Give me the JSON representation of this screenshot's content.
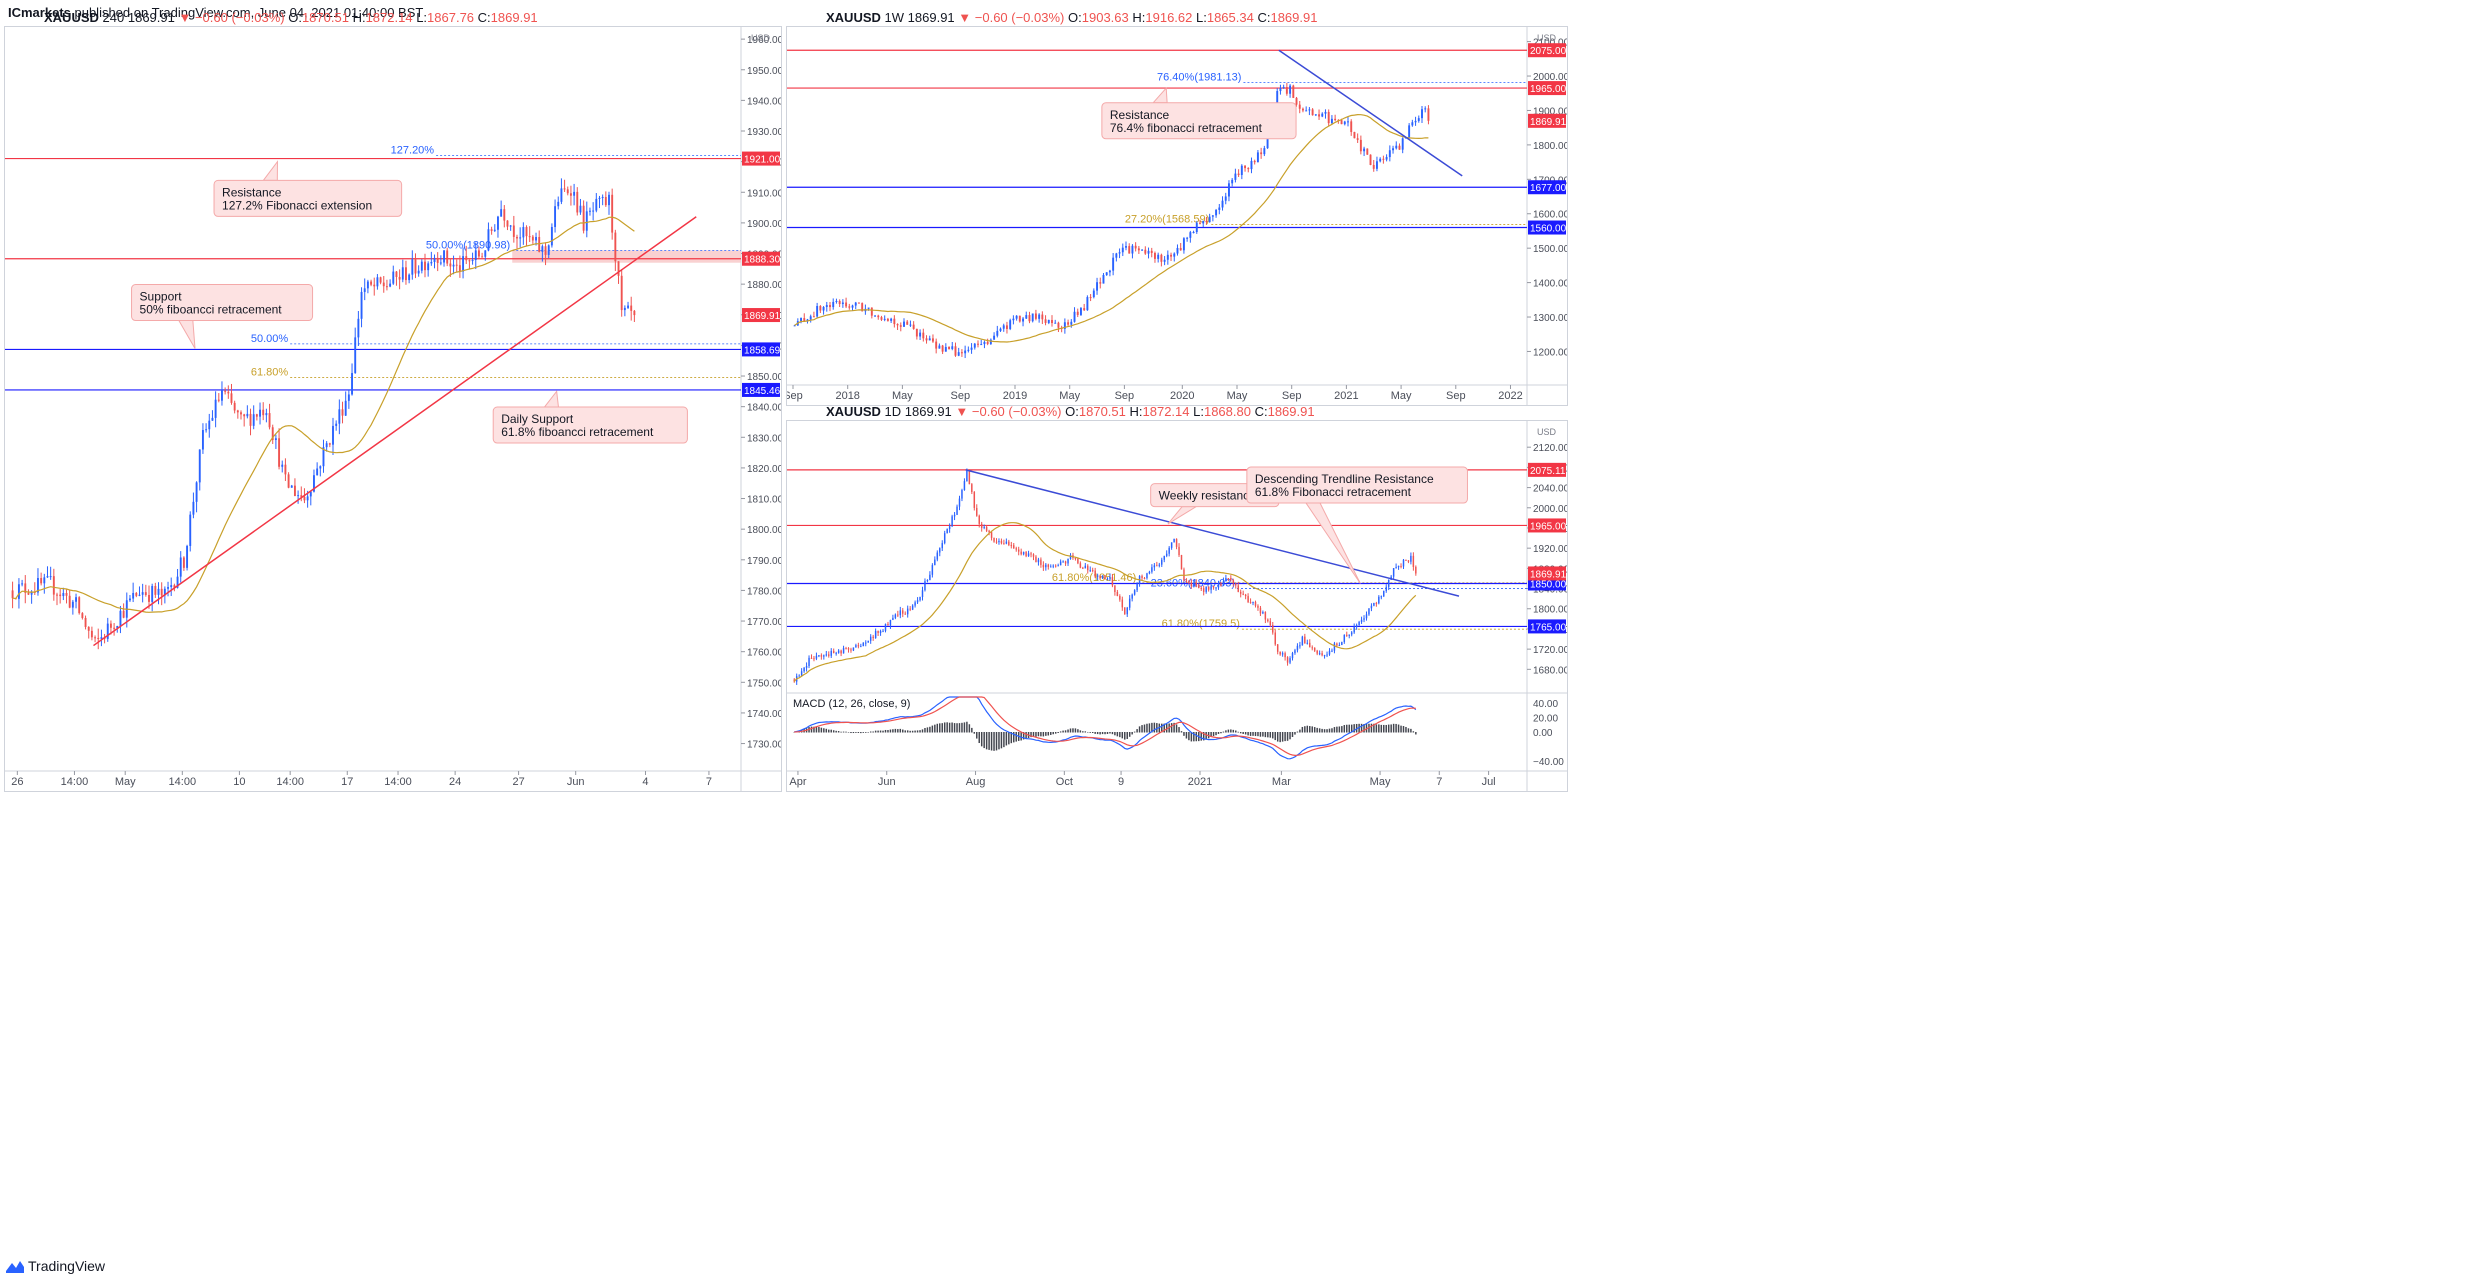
{
  "publisher": {
    "name": "ICmarkets",
    "text": " published on TradingView.com, June 04, 2021 01:40:00 BST"
  },
  "footer": {
    "brand": "TradingView"
  },
  "colors": {
    "up": "#2962ff",
    "down": "#ef5350",
    "ma": "#c8a02a",
    "resistance": "#f23645",
    "support": "#1a1aff",
    "trend_red": "#f23645",
    "trend_blue": "#3b4bd6",
    "callout_bg": "#fde2e2",
    "callout_border": "#f4a9a9"
  },
  "chart_data": [
    {
      "id": "h4",
      "type": "candlestick",
      "title_parts": {
        "symbol": "XAUUSD",
        "tf": "240",
        "last": "1869.91",
        "chg": "▼ −0.60 (−0.03%)",
        "o_label": "O:",
        "o": "1870.51",
        "h_label": "H:",
        "h": "1872.14",
        "l_label": "L:",
        "l": "1867.76",
        "c_label": "C:",
        "c": "1869.91"
      },
      "currency": "USD",
      "ylim": [
        1723,
        1962
      ],
      "y_ticks": [
        1730,
        1740,
        1750,
        1760,
        1770,
        1780,
        1790,
        1800,
        1810,
        1820,
        1830,
        1840,
        1850,
        1860,
        1870,
        1880,
        1890,
        1900,
        1910,
        1920,
        1930,
        1940,
        1950,
        1960
      ],
      "y_tick_labels": [
        "1730.00",
        "1740.00",
        "1750.00",
        "1760.00",
        "1770.00",
        "1780.00",
        "1790.00",
        "1800.00",
        "1810.00",
        "1820.00",
        "1830.00",
        "1840.00",
        "1850.00",
        "1860.00",
        "1870.00",
        "1880.00",
        "1890.00",
        "1900.00",
        "1910.00",
        "1920.00",
        "1930.00",
        "1940.00",
        "1950.00",
        "1960.00"
      ],
      "x_count": 232,
      "x_ticks": [
        {
          "i": 2,
          "label": "26"
        },
        {
          "i": 20,
          "label": "14:00"
        },
        {
          "i": 36,
          "label": "May"
        },
        {
          "i": 54,
          "label": "14:00"
        },
        {
          "i": 72,
          "label": "10"
        },
        {
          "i": 88,
          "label": "14:00"
        },
        {
          "i": 106,
          "label": "17"
        },
        {
          "i": 122,
          "label": "14:00"
        },
        {
          "i": 140,
          "label": "24"
        },
        {
          "i": 160,
          "label": "27"
        },
        {
          "i": 178,
          "label": "Jun"
        },
        {
          "i": 200,
          "label": "4"
        },
        {
          "i": 220,
          "label": "7"
        }
      ],
      "anchors": [
        [
          0,
          1780
        ],
        [
          12,
          1782
        ],
        [
          20,
          1775
        ],
        [
          26,
          1762
        ],
        [
          32,
          1770
        ],
        [
          40,
          1780
        ],
        [
          48,
          1778
        ],
        [
          54,
          1790
        ],
        [
          60,
          1830
        ],
        [
          66,
          1845
        ],
        [
          72,
          1835
        ],
        [
          80,
          1840
        ],
        [
          86,
          1815
        ],
        [
          92,
          1810
        ],
        [
          100,
          1830
        ],
        [
          106,
          1845
        ],
        [
          110,
          1878
        ],
        [
          118,
          1880
        ],
        [
          126,
          1885
        ],
        [
          134,
          1890
        ],
        [
          140,
          1885
        ],
        [
          148,
          1890
        ],
        [
          154,
          1905
        ],
        [
          158,
          1898
        ],
        [
          162,
          1895
        ],
        [
          168,
          1890
        ],
        [
          172,
          1908
        ],
        [
          176,
          1912
        ],
        [
          180,
          1900
        ],
        [
          184,
          1905
        ],
        [
          188,
          1907
        ],
        [
          190,
          1890
        ],
        [
          192,
          1870
        ],
        [
          196,
          1869.9
        ]
      ],
      "price_lines": [
        {
          "value": 1921.0,
          "label": "1921.00",
          "color": "#f23645",
          "style": "solid",
          "box": "#f23645"
        },
        {
          "value": 1888.3,
          "label": "1888.30",
          "color": "#f23645",
          "style": "solid",
          "box": "#f23645"
        },
        {
          "value": 1858.69,
          "label": "1858.69",
          "color": "#1a1aff",
          "style": "solid",
          "box": "#1a1aff"
        },
        {
          "value": 1845.46,
          "label": "1845.46",
          "color": "#1a1aff",
          "style": "solid",
          "box": "#1a1aff"
        }
      ],
      "last_price": {
        "value": 1869.91,
        "label": "1869.91"
      },
      "fib_lines": [
        {
          "value": 1922.0,
          "label": "127.20%",
          "color": "#2962ff",
          "x_from": 134
        },
        {
          "value": 1890.98,
          "label": "50.00%(1890.98)",
          "color": "#2962ff",
          "x_from": 158
        },
        {
          "value": 1860.5,
          "label": "50.00%",
          "color": "#2962ff",
          "x_from": 88
        },
        {
          "value": 1849.5,
          "label": "61.80%",
          "color": "#c8a02a",
          "x_from": 88
        }
      ],
      "trendlines": [
        {
          "from": [
            26,
            1762
          ],
          "to": [
            216,
            1902
          ],
          "color": "#f23645"
        }
      ],
      "zones": [
        {
          "from_i": 158,
          "to_i": 232,
          "y1": 1887,
          "y2": 1891,
          "color": "#f8c6c6"
        }
      ],
      "callouts": [
        {
          "text": [
            "Resistance",
            "127.2% Fibonacci extension"
          ],
          "x_i": 64,
          "y": 1908,
          "tip": [
            84,
            1920
          ]
        },
        {
          "text": [
            "Support",
            "50% fiboancci retracement"
          ],
          "x_i": 38,
          "y": 1874,
          "tip": [
            58,
            1859
          ]
        },
        {
          "text": [
            "Daily Support",
            "61.8% fiboancci retracement"
          ],
          "x_i": 152,
          "y": 1834,
          "tip": [
            172,
            1845
          ]
        }
      ]
    },
    {
      "id": "w1",
      "type": "candlestick",
      "title_parts": {
        "symbol": "XAUUSD",
        "tf": "1W",
        "last": "1869.91",
        "chg": "▼ −0.60 (−0.03%)",
        "o_label": "O:",
        "o": "1903.63",
        "h_label": "H:",
        "h": "1916.62",
        "l_label": "L:",
        "l": "1865.34",
        "c_label": "C:",
        "c": "1869.91"
      },
      "currency": "USD",
      "ylim": [
        1120,
        2125
      ],
      "y_ticks": [
        1200,
        1300,
        1400,
        1500,
        1600,
        1700,
        1800,
        1900,
        2000,
        2100
      ],
      "y_tick_labels": [
        "1200.00",
        "1300.00",
        "1400.00",
        "1500.00",
        "1600.00",
        "1700.00",
        "1800.00",
        "1900.00",
        "2000.00",
        "2100.00"
      ],
      "x_count": 230,
      "x_ticks": [
        {
          "i": 0,
          "label": "Sep"
        },
        {
          "i": 17,
          "label": "2018"
        },
        {
          "i": 34,
          "label": "May"
        },
        {
          "i": 52,
          "label": "Sep"
        },
        {
          "i": 69,
          "label": "2019"
        },
        {
          "i": 86,
          "label": "May"
        },
        {
          "i": 103,
          "label": "Sep"
        },
        {
          "i": 121,
          "label": "2020"
        },
        {
          "i": 138,
          "label": "May"
        },
        {
          "i": 155,
          "label": "Sep"
        },
        {
          "i": 172,
          "label": "2021"
        },
        {
          "i": 189,
          "label": "May"
        },
        {
          "i": 206,
          "label": "Sep"
        },
        {
          "i": 223,
          "label": "2022"
        }
      ],
      "anchors": [
        [
          0,
          1275
        ],
        [
          8,
          1325
        ],
        [
          14,
          1340
        ],
        [
          20,
          1330
        ],
        [
          28,
          1300
        ],
        [
          36,
          1270
        ],
        [
          44,
          1215
        ],
        [
          52,
          1195
        ],
        [
          60,
          1230
        ],
        [
          68,
          1290
        ],
        [
          76,
          1300
        ],
        [
          84,
          1275
        ],
        [
          90,
          1330
        ],
        [
          96,
          1420
        ],
        [
          102,
          1500
        ],
        [
          108,
          1490
        ],
        [
          114,
          1470
        ],
        [
          118,
          1480
        ],
        [
          124,
          1560
        ],
        [
          128,
          1580
        ],
        [
          132,
          1620
        ],
        [
          136,
          1700
        ],
        [
          140,
          1735
        ],
        [
          146,
          1780
        ],
        [
          150,
          1950
        ],
        [
          154,
          1960
        ],
        [
          158,
          1900
        ],
        [
          164,
          1890
        ],
        [
          168,
          1860
        ],
        [
          172,
          1860
        ],
        [
          176,
          1790
        ],
        [
          180,
          1740
        ],
        [
          184,
          1770
        ],
        [
          188,
          1790
        ],
        [
          192,
          1870
        ],
        [
          196,
          1900
        ],
        [
          197,
          1869.9
        ]
      ],
      "price_lines": [
        {
          "value": 2075.0,
          "label": "2075.00",
          "color": "#f23645",
          "style": "solid",
          "box": "#f23645"
        },
        {
          "value": 1965.0,
          "label": "1965.00",
          "color": "#f23645",
          "style": "solid",
          "box": "#f23645"
        },
        {
          "value": 1677.0,
          "label": "1677.00",
          "color": "#1a1aff",
          "style": "solid",
          "box": "#1a1aff"
        },
        {
          "value": 1560.0,
          "label": "1560.00",
          "color": "#1a1aff",
          "style": "solid",
          "box": "#1a1aff"
        }
      ],
      "last_price": {
        "value": 1869.91,
        "label": "1869.91"
      },
      "fib_lines": [
        {
          "value": 1981.13,
          "label": "76.40%(1981.13)",
          "color": "#2962ff",
          "x_from": 140
        },
        {
          "value": 1568.59,
          "label": "27.20%(1568.59)",
          "color": "#c8a02a",
          "x_from": 130
        }
      ],
      "trendlines": [
        {
          "from": [
            151,
            2075
          ],
          "to": [
            208,
            1710
          ],
          "color": "#3b4bd6"
        }
      ],
      "zones": [],
      "callouts": [
        {
          "text": [
            "Resistance",
            "76.4% fibonacci retracement"
          ],
          "x_i": 96,
          "y": 1870,
          "tip": [
            116,
            1965
          ]
        }
      ]
    },
    {
      "id": "d1",
      "type": "candlestick",
      "title_parts": {
        "symbol": "XAUUSD",
        "tf": "1D",
        "last": "1869.91",
        "chg": "▼ −0.60 (−0.03%)",
        "o_label": "O:",
        "o": "1870.51",
        "h_label": "H:",
        "h": "1872.14",
        "l_label": "L:",
        "l": "1868.80",
        "c_label": "C:",
        "c": "1869.91"
      },
      "currency": "USD",
      "ylim": [
        1645,
        2160
      ],
      "y_ticks": [
        1680,
        1720,
        1760,
        1800,
        1840,
        1880,
        1920,
        1960,
        2000,
        2040,
        2080,
        2120
      ],
      "y_tick_labels": [
        "1680.00",
        "1720.00",
        "1760.00",
        "1800.00",
        "1840.00",
        "1880.00",
        "1920.00",
        "1960.00",
        "2000.00",
        "2040.00",
        "2080.00",
        "2120.00"
      ],
      "x_count": 300,
      "x_ticks": [
        {
          "i": 2,
          "label": "Apr"
        },
        {
          "i": 38,
          "label": "Jun"
        },
        {
          "i": 74,
          "label": "Aug"
        },
        {
          "i": 110,
          "label": "Oct"
        },
        {
          "i": 133,
          "label": "9"
        },
        {
          "i": 165,
          "label": "2021"
        },
        {
          "i": 198,
          "label": "Mar"
        },
        {
          "i": 238,
          "label": "May"
        },
        {
          "i": 262,
          "label": "7"
        },
        {
          "i": 282,
          "label": "Jul"
        }
      ],
      "anchors": [
        [
          0,
          1660
        ],
        [
          6,
          1700
        ],
        [
          14,
          1710
        ],
        [
          22,
          1720
        ],
        [
          30,
          1740
        ],
        [
          36,
          1760
        ],
        [
          42,
          1790
        ],
        [
          48,
          1800
        ],
        [
          56,
          1880
        ],
        [
          62,
          1960
        ],
        [
          66,
          2000
        ],
        [
          70,
          2075
        ],
        [
          74,
          1980
        ],
        [
          80,
          1940
        ],
        [
          90,
          1920
        ],
        [
          100,
          1890
        ],
        [
          106,
          1880
        ],
        [
          112,
          1900
        ],
        [
          118,
          1880
        ],
        [
          122,
          1870
        ],
        [
          128,
          1860
        ],
        [
          134,
          1790
        ],
        [
          140,
          1860
        ],
        [
          146,
          1880
        ],
        [
          150,
          1900
        ],
        [
          154,
          1940
        ],
        [
          158,
          1860
        ],
        [
          164,
          1840
        ],
        [
          170,
          1840
        ],
        [
          176,
          1860
        ],
        [
          182,
          1830
        ],
        [
          186,
          1810
        ],
        [
          192,
          1780
        ],
        [
          196,
          1720
        ],
        [
          200,
          1700
        ],
        [
          206,
          1740
        ],
        [
          210,
          1720
        ],
        [
          216,
          1710
        ],
        [
          222,
          1740
        ],
        [
          228,
          1770
        ],
        [
          232,
          1790
        ],
        [
          238,
          1830
        ],
        [
          242,
          1870
        ],
        [
          246,
          1890
        ],
        [
          250,
          1900
        ],
        [
          252,
          1869.9
        ]
      ],
      "price_lines": [
        {
          "value": 2075.11,
          "label": "2075.11",
          "color": "#f23645",
          "style": "solid",
          "box": "#f23645"
        },
        {
          "value": 1965.0,
          "label": "1965.00",
          "color": "#f23645",
          "style": "solid",
          "box": "#f23645"
        },
        {
          "value": 1850.0,
          "label": "1850.00",
          "color": "#1a1aff",
          "style": "solid",
          "box": "#1a1aff"
        },
        {
          "value": 1765.0,
          "label": "1765.00",
          "color": "#1a1aff",
          "style": "solid",
          "box": "#1a1aff"
        }
      ],
      "last_price": {
        "value": 1869.91,
        "label": "1869.91"
      },
      "fib_lines": [
        {
          "value": 1840.03,
          "label": "23.60%(1840.03)",
          "color": "#2962ff",
          "x_from": 180
        },
        {
          "value": 1851.46,
          "label": "61.80%(1851.46)",
          "color": "#c8a02a",
          "x_from": 140
        },
        {
          "value": 1759.5,
          "label": "61.80%(1759.5)",
          "color": "#c8a02a",
          "x_from": 182
        }
      ],
      "trendlines": [
        {
          "from": [
            70,
            2075
          ],
          "to": [
            270,
            1825
          ],
          "color": "#3b4bd6"
        }
      ],
      "zones": [],
      "callouts": [
        {
          "text": [
            "Weekly resistance"
          ],
          "x_i": 145,
          "y": 2025,
          "tip": [
            152,
            1968
          ]
        },
        {
          "text": [
            "Descending Trendline Resistance",
            "61.8% Fibonacci retracement"
          ],
          "x_i": 184,
          "y": 2045,
          "tip": [
            230,
            1850
          ]
        }
      ],
      "macd": {
        "label": "MACD (12, 26, close, 9)",
        "ylim": [
          -48,
          48
        ],
        "y_ticks": [
          -40,
          0,
          20,
          40
        ],
        "y_tick_labels": [
          "−40.00",
          "0.00",
          "20.00",
          "40.00"
        ]
      }
    }
  ]
}
